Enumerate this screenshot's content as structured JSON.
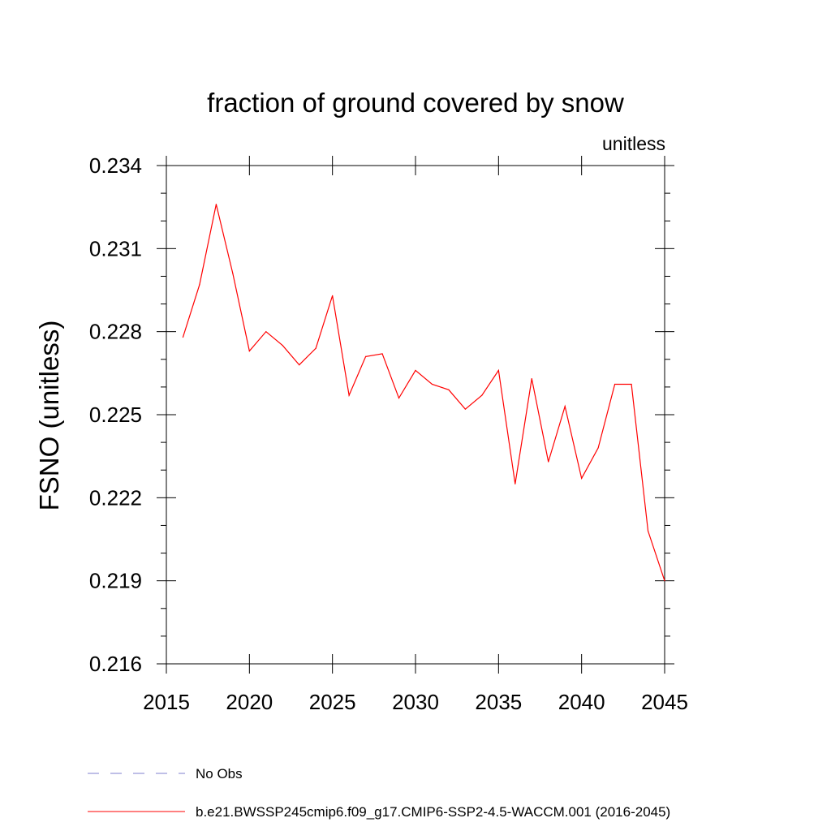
{
  "chart_data": {
    "type": "line",
    "title": "fraction of ground covered by snow",
    "subtitle_right": "unitless",
    "xlabel": "",
    "ylabel": "FSNO  (unitless)",
    "xlim": [
      2015,
      2045
    ],
    "ylim": [
      0.216,
      0.234
    ],
    "x_ticks": [
      "2015",
      "2020",
      "2025",
      "2030",
      "2035",
      "2040",
      "2045"
    ],
    "y_ticks": [
      "0.216",
      "0.219",
      "0.222",
      "0.225",
      "0.228",
      "0.231",
      "0.234"
    ],
    "grid": false,
    "legend_position": "bottom",
    "legend": [
      {
        "label": "No Obs",
        "color": "#7f7fcf",
        "style": "dashed"
      },
      {
        "label": "b.e21.BWSSP245cmip6.f09_g17.CMIP6-SSP2-4.5-WACCM.001 (2016-2045)",
        "color": "#ff0000",
        "style": "solid"
      }
    ],
    "series": [
      {
        "name": "b.e21.BWSSP245cmip6.f09_g17.CMIP6-SSP2-4.5-WACCM.001 (2016-2045)",
        "color": "#ff0000",
        "x": [
          2016,
          2017,
          2018,
          2019,
          2020,
          2021,
          2022,
          2023,
          2024,
          2025,
          2026,
          2027,
          2028,
          2029,
          2030,
          2031,
          2032,
          2033,
          2034,
          2035,
          2036,
          2037,
          2038,
          2039,
          2040,
          2041,
          2042,
          2043,
          2044,
          2045
        ],
        "y": [
          0.2278,
          0.2297,
          0.2326,
          0.2301,
          0.2273,
          0.228,
          0.2275,
          0.2268,
          0.2274,
          0.2293,
          0.2257,
          0.2271,
          0.2272,
          0.2256,
          0.2266,
          0.2261,
          0.2259,
          0.2252,
          0.2257,
          0.2266,
          0.2225,
          0.2263,
          0.2233,
          0.2253,
          0.2227,
          0.2238,
          0.2261,
          0.2261,
          0.2208,
          0.219
        ]
      }
    ]
  }
}
